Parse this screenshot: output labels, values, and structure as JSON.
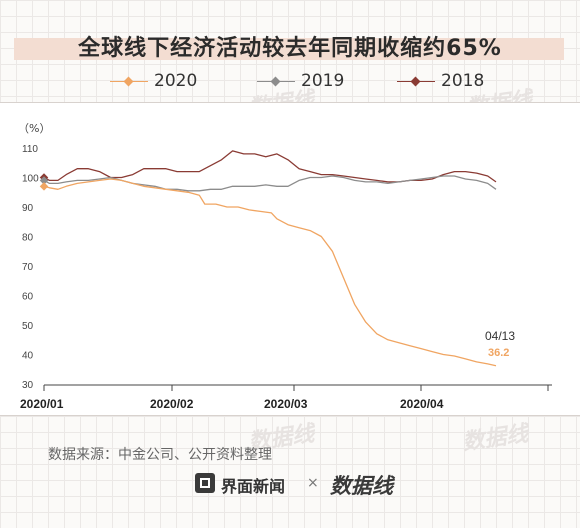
{
  "title": "全球线下经济活动较去年同期收缩约65%",
  "legend": [
    {
      "label": "2020",
      "color": "#f0a562"
    },
    {
      "label": "2019",
      "color": "#8c8c8c"
    },
    {
      "label": "2018",
      "color": "#8a3b34"
    }
  ],
  "source": "数据来源：中金公司、公开资料整理",
  "brand": {
    "name": "界面新闻",
    "separator": "×",
    "partner_logo": "数据线"
  },
  "watermark_text": "数据线",
  "chart_data": {
    "type": "line",
    "title": "全球线下经济活动较去年同期收缩约65%",
    "ylabel": "（%）",
    "ylim": [
      30,
      110
    ],
    "yticks": [
      "110",
      "100",
      "90",
      "80",
      "70",
      "60",
      "50",
      "40",
      "30"
    ],
    "x_tick_labels": [
      "2020/01",
      "2020/02",
      "2020/03",
      "2020/04"
    ],
    "annotation": {
      "date": "04/13",
      "value": "36.2"
    },
    "grid": false,
    "legend_position": "top",
    "series": [
      {
        "name": "2020",
        "color": "#f0a562",
        "points": [
          [
            0,
            97
          ],
          [
            2,
            96.5
          ],
          [
            5,
            96
          ],
          [
            8,
            97
          ],
          [
            12,
            98
          ],
          [
            16,
            98.5
          ],
          [
            20,
            99
          ],
          [
            24,
            99.5
          ],
          [
            28,
            99
          ],
          [
            32,
            98
          ],
          [
            36,
            97
          ],
          [
            40,
            96.5
          ],
          [
            44,
            96
          ],
          [
            48,
            95.5
          ],
          [
            52,
            95
          ],
          [
            56,
            94
          ],
          [
            58,
            91
          ],
          [
            62,
            91
          ],
          [
            66,
            90
          ],
          [
            70,
            90
          ],
          [
            74,
            89
          ],
          [
            78,
            88.5
          ],
          [
            82,
            88
          ],
          [
            84,
            86
          ],
          [
            88,
            84
          ],
          [
            92,
            83
          ],
          [
            96,
            82
          ],
          [
            100,
            80
          ],
          [
            104,
            75
          ],
          [
            108,
            66
          ],
          [
            112,
            57
          ],
          [
            116,
            51
          ],
          [
            120,
            47
          ],
          [
            124,
            45
          ],
          [
            128,
            44
          ],
          [
            132,
            43
          ],
          [
            136,
            42
          ],
          [
            140,
            41
          ],
          [
            144,
            40
          ],
          [
            148,
            39.5
          ],
          [
            152,
            38.5
          ],
          [
            156,
            37.5
          ],
          [
            160,
            36.8
          ],
          [
            163,
            36.2
          ]
        ]
      },
      {
        "name": "2019",
        "color": "#8c8c8c",
        "points": [
          [
            0,
            99
          ],
          [
            2,
            98
          ],
          [
            5,
            98
          ],
          [
            8,
            98.5
          ],
          [
            12,
            99
          ],
          [
            16,
            99
          ],
          [
            20,
            99.5
          ],
          [
            24,
            100
          ],
          [
            28,
            99
          ],
          [
            32,
            98
          ],
          [
            36,
            97.5
          ],
          [
            40,
            97
          ],
          [
            44,
            96
          ],
          [
            48,
            96
          ],
          [
            52,
            95.5
          ],
          [
            56,
            95.5
          ],
          [
            60,
            96
          ],
          [
            64,
            96
          ],
          [
            68,
            97
          ],
          [
            72,
            97
          ],
          [
            76,
            97
          ],
          [
            80,
            97.5
          ],
          [
            84,
            97
          ],
          [
            88,
            97
          ],
          [
            92,
            99
          ],
          [
            96,
            100
          ],
          [
            100,
            100
          ],
          [
            104,
            100.5
          ],
          [
            108,
            100
          ],
          [
            112,
            99
          ],
          [
            116,
            98.5
          ],
          [
            120,
            98.5
          ],
          [
            124,
            98
          ],
          [
            128,
            98.5
          ],
          [
            132,
            99
          ],
          [
            136,
            99.5
          ],
          [
            140,
            100
          ],
          [
            144,
            100.5
          ],
          [
            148,
            100.5
          ],
          [
            152,
            99.5
          ],
          [
            156,
            99
          ],
          [
            160,
            98
          ],
          [
            163,
            96
          ]
        ]
      },
      {
        "name": "2018",
        "color": "#8a3b34",
        "points": [
          [
            0,
            100
          ],
          [
            2,
            99
          ],
          [
            5,
            99
          ],
          [
            8,
            101
          ],
          [
            12,
            103
          ],
          [
            16,
            103
          ],
          [
            20,
            102
          ],
          [
            24,
            100
          ],
          [
            28,
            100
          ],
          [
            32,
            101
          ],
          [
            36,
            103
          ],
          [
            40,
            103
          ],
          [
            44,
            103
          ],
          [
            48,
            102
          ],
          [
            52,
            102
          ],
          [
            56,
            102
          ],
          [
            60,
            104
          ],
          [
            64,
            106
          ],
          [
            68,
            109
          ],
          [
            72,
            108
          ],
          [
            76,
            108
          ],
          [
            80,
            107
          ],
          [
            84,
            108
          ],
          [
            88,
            106
          ],
          [
            92,
            103
          ],
          [
            96,
            102
          ],
          [
            100,
            101
          ],
          [
            104,
            101
          ],
          [
            108,
            100.5
          ],
          [
            112,
            100
          ],
          [
            116,
            99.5
          ],
          [
            120,
            99
          ],
          [
            124,
            98.5
          ],
          [
            128,
            98.5
          ],
          [
            132,
            99
          ],
          [
            136,
            99
          ],
          [
            140,
            99.5
          ],
          [
            144,
            101
          ],
          [
            148,
            102
          ],
          [
            152,
            102
          ],
          [
            156,
            101.5
          ],
          [
            160,
            100.5
          ],
          [
            163,
            98.5
          ]
        ]
      }
    ]
  }
}
